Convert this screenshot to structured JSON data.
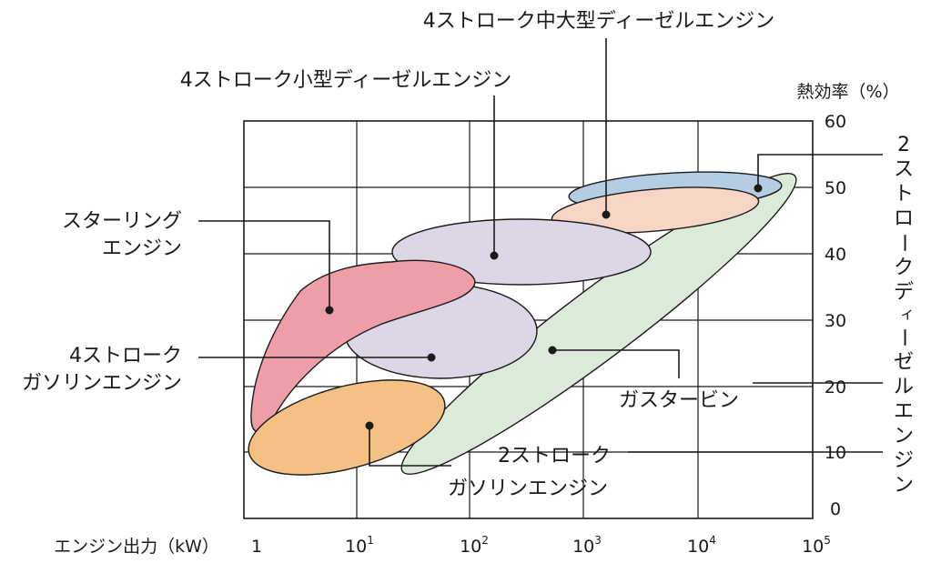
{
  "x_axis": {
    "label": "エンジン出力（kW）",
    "ticks": [
      {
        "base": "1",
        "exp": ""
      },
      {
        "base": "10",
        "exp": "1"
      },
      {
        "base": "10",
        "exp": "2"
      },
      {
        "base": "10",
        "exp": "3"
      },
      {
        "base": "10",
        "exp": "4"
      },
      {
        "base": "10",
        "exp": "5"
      }
    ]
  },
  "y_axis": {
    "label": "熱効率（%）",
    "ticks": [
      "60",
      "50",
      "40",
      "30",
      "20",
      "10",
      "0"
    ]
  },
  "regions": {
    "four_stroke_large_diesel": {
      "label": "4ストローク中大型ディーゼルエンジン",
      "color": "#f6d5c4"
    },
    "four_stroke_small_diesel": {
      "label": "4ストローク小型ディーゼルエンジン",
      "color": "#ddd6e6"
    },
    "two_stroke_diesel": {
      "label_chars": [
        "2",
        "ス",
        "ト",
        "ロ",
        "ー",
        "ク",
        "デ",
        "ィ",
        "ー",
        "ゼ",
        "ル",
        "エ",
        "ン",
        "ジ",
        "ン"
      ],
      "color": "#b5cde3"
    },
    "stirling": {
      "label_lines": [
        "スターリング",
        "エンジン"
      ],
      "color": "#ee9ea6"
    },
    "four_stroke_gasoline": {
      "label_lines": [
        "4ストローク",
        "ガソリンエンジン"
      ],
      "color": "#ddd6e6"
    },
    "gas_turbine": {
      "label": "ガスタービン",
      "color": "#dcebd9"
    },
    "two_stroke_gasoline": {
      "label_lines": [
        "2ストローク",
        "ガソリンエンジン"
      ],
      "color": "#f5c083"
    }
  }
}
